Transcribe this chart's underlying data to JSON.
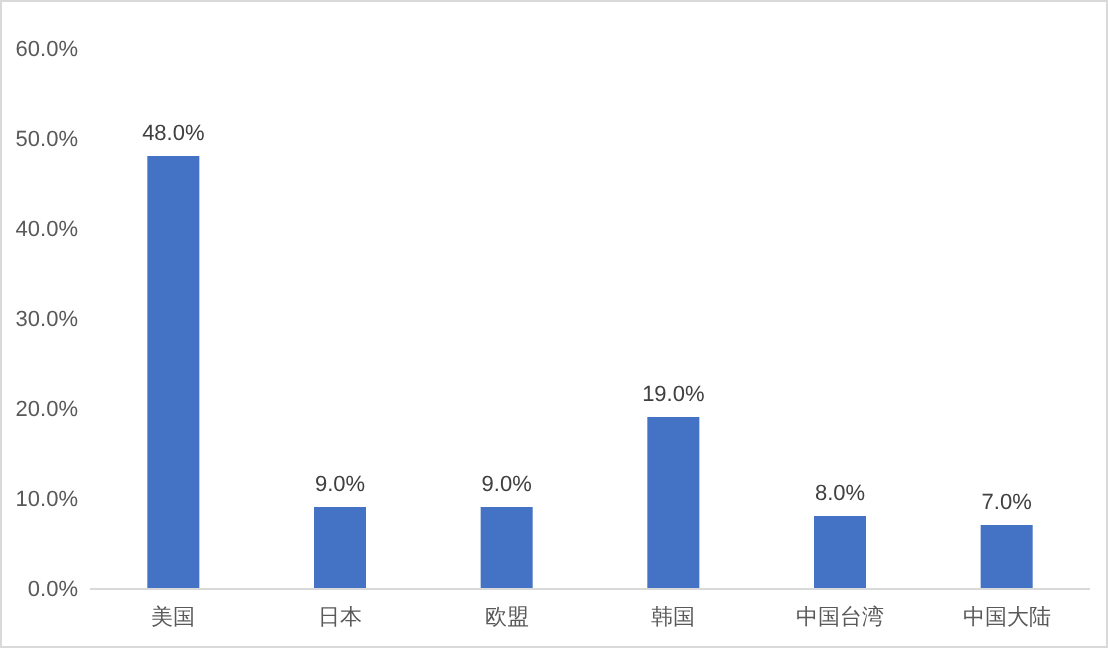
{
  "chart_data": {
    "type": "bar",
    "categories": [
      "美国",
      "日本",
      "欧盟",
      "韩国",
      "中国台湾",
      "中国大陆"
    ],
    "values": [
      48,
      9,
      9,
      19,
      8,
      7
    ],
    "color": "#4472c4",
    "value_labels": [
      "48.0%",
      "9.0%",
      "9.0%",
      "19.0%",
      "8.0%",
      "7.0%"
    ],
    "ylim": [
      0,
      60
    ],
    "yticks": [
      {
        "value": 0,
        "label": "0.0%"
      },
      {
        "value": 10,
        "label": "10.0%"
      },
      {
        "value": 20,
        "label": "20.0%"
      },
      {
        "value": 30,
        "label": "30.0%"
      },
      {
        "value": 40,
        "label": "40.0%"
      },
      {
        "value": 50,
        "label": "50.0%"
      },
      {
        "value": 60,
        "label": "60.0%"
      }
    ],
    "grid": false
  }
}
